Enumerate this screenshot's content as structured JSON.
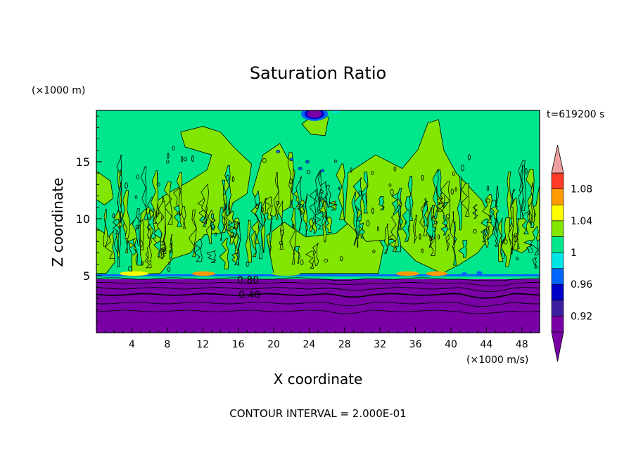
{
  "chart_data": {
    "type": "heatmap",
    "title": "Saturation Ratio",
    "xlabel": "X coordinate",
    "ylabel": "Z coordinate",
    "x_unit": "(×1000 m/s)",
    "y_unit": "(×1000 m)",
    "time_label": "t=619200 s",
    "footer": "CONTOUR INTERVAL = 2.000E-01",
    "xlim": [
      0,
      50
    ],
    "ylim": [
      0,
      19.5
    ],
    "x_ticks": [
      4,
      8,
      12,
      16,
      20,
      24,
      28,
      32,
      36,
      40,
      44,
      48
    ],
    "y_ticks": [
      5,
      10,
      15
    ],
    "colorbar": {
      "levels": [
        0.9,
        0.92,
        0.94,
        0.96,
        0.98,
        1.0,
        1.02,
        1.04,
        1.06,
        1.08,
        1.1
      ],
      "tick_labels": [
        "0.92",
        "0.96",
        "1",
        "1.04",
        "1.08"
      ],
      "colors": [
        "#7a00a6",
        "#3c1ea0",
        "#0000c8",
        "#0064ff",
        "#00e6e6",
        "#00e68c",
        "#82e600",
        "#ffff00",
        "#ff9b00",
        "#ff3c28",
        "#f0a0a0"
      ]
    },
    "contour_labels": [
      {
        "text": "0.80",
        "x": 13.2,
        "z": 4.6
      },
      {
        "text": "0.40",
        "x": 13.2,
        "z": 3.4
      }
    ],
    "regions": {
      "dry_layer_top_z": 5.0,
      "moist_layer": "z 5 to 19.5, values near 1.0",
      "dry_layer": "z 0 to 5, values below 0.9"
    }
  }
}
